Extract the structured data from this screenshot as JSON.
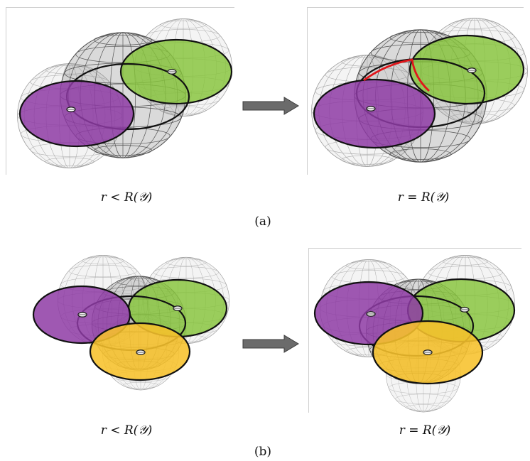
{
  "captions": {
    "a_left": "r < R(𝒴)",
    "a_right": "r = R(𝒴)",
    "b_left": "r < R(𝒴)",
    "b_right": "r = R(𝒴)"
  },
  "sublabels": {
    "a": "(a)",
    "b": "(b)"
  },
  "colors": {
    "purple": "#8e3ba5",
    "green": "#86c43a",
    "yellow": "#f7c22b",
    "red_arc": "#e0161b",
    "arrow": "#6b6b6b"
  }
}
